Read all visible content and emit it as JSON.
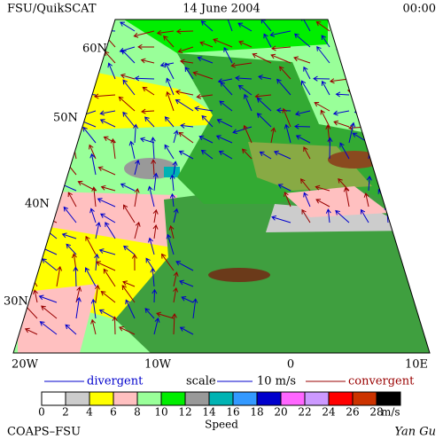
{
  "header": {
    "left": "FSU/QuikSCAT",
    "center": "14 June 2004",
    "right": "00:00"
  },
  "map": {
    "lat_labels": [
      "60N",
      "50N",
      "40N",
      "30N"
    ],
    "lon_labels": [
      "20W",
      "10W",
      "0",
      "10E"
    ]
  },
  "legend": {
    "divergent": "divergent",
    "scale": "scale",
    "scale_value": "10 m/s",
    "convergent": "convergent"
  },
  "colorbar": {
    "ticks": [
      0,
      2,
      4,
      6,
      8,
      10,
      12,
      14,
      16,
      18,
      20,
      22,
      24,
      26,
      28
    ],
    "unit": "m/s",
    "label": "Speed",
    "colors": [
      "#ffffff",
      "#cccccc",
      "#ffff00",
      "#ffc0c0",
      "#99ff99",
      "#00ee00",
      "#999999",
      "#00b3b3",
      "#3399ff",
      "#0000cc",
      "#ff66ff",
      "#cc99ff",
      "#ff0000",
      "#cc3300",
      "#000000"
    ]
  },
  "footer": {
    "left": "COAPS–FSU",
    "right": "Yan Gu"
  }
}
